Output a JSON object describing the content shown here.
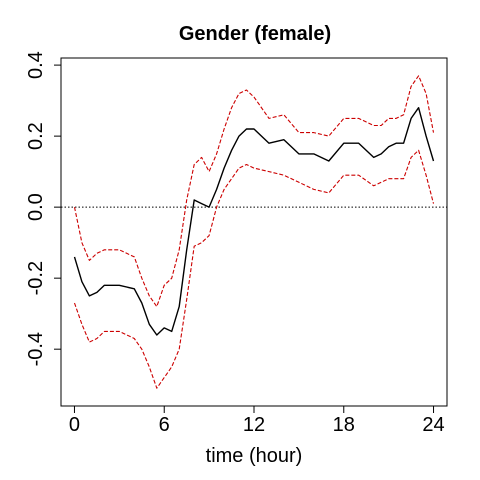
{
  "chart_data": {
    "type": "line",
    "title": "Gender (female)",
    "xlabel": "time (hour)",
    "ylabel": "",
    "xlim": [
      -0.9,
      24.9
    ],
    "ylim": [
      -0.56,
      0.42
    ],
    "xticks": [
      0,
      6,
      12,
      18,
      24
    ],
    "yticks": [
      -0.4,
      -0.2,
      0.0,
      0.2,
      0.4
    ],
    "xtick_labels": [
      "0",
      "6",
      "12",
      "18",
      "24"
    ],
    "ytick_labels": [
      "-0.4",
      "-0.2",
      "0.0",
      "0.2",
      "0.4"
    ],
    "reference_line": {
      "y": 0.0,
      "style": "dotted",
      "color": "#000000"
    },
    "grid": false,
    "series": [
      {
        "role": "estimate",
        "color": "#000000",
        "style": "solid",
        "x": [
          0,
          0.5,
          1,
          1.5,
          2,
          3,
          4,
          4.5,
          5,
          5.5,
          6,
          6.5,
          7,
          7.5,
          8,
          8.5,
          9,
          9.5,
          10,
          10.5,
          11,
          11.5,
          12,
          13,
          14,
          15,
          16,
          17,
          18,
          19,
          20,
          20.5,
          21,
          21.5,
          22,
          22.5,
          23,
          23.5,
          24
        ],
        "y": [
          -0.14,
          -0.21,
          -0.25,
          -0.24,
          -0.22,
          -0.22,
          -0.23,
          -0.27,
          -0.33,
          -0.36,
          -0.34,
          -0.35,
          -0.28,
          -0.12,
          0.02,
          0.01,
          0.0,
          0.05,
          0.11,
          0.16,
          0.2,
          0.22,
          0.22,
          0.18,
          0.19,
          0.15,
          0.15,
          0.13,
          0.18,
          0.18,
          0.14,
          0.15,
          0.17,
          0.18,
          0.18,
          0.25,
          0.28,
          0.2,
          0.13
        ]
      },
      {
        "role": "upper bound",
        "color": "#cc0000",
        "style": "dashed",
        "x": [
          0,
          0.5,
          1,
          1.5,
          2,
          3,
          4,
          4.5,
          5,
          5.5,
          6,
          6.5,
          7,
          7.5,
          8,
          8.5,
          9,
          9.5,
          10,
          10.5,
          11,
          11.5,
          12,
          13,
          14,
          15,
          16,
          17,
          18,
          19,
          20,
          20.5,
          21,
          21.5,
          22,
          22.5,
          23,
          23.5,
          24
        ],
        "y": [
          0.0,
          -0.1,
          -0.15,
          -0.13,
          -0.12,
          -0.12,
          -0.14,
          -0.2,
          -0.25,
          -0.28,
          -0.22,
          -0.2,
          -0.12,
          0.02,
          0.12,
          0.14,
          0.1,
          0.15,
          0.22,
          0.28,
          0.32,
          0.33,
          0.31,
          0.25,
          0.26,
          0.21,
          0.21,
          0.2,
          0.25,
          0.25,
          0.23,
          0.23,
          0.25,
          0.25,
          0.26,
          0.34,
          0.37,
          0.32,
          0.21
        ]
      },
      {
        "role": "lower bound",
        "color": "#cc0000",
        "style": "dashed",
        "x": [
          0,
          0.5,
          1,
          1.5,
          2,
          3,
          4,
          4.5,
          5,
          5.5,
          6,
          6.5,
          7,
          7.5,
          8,
          8.5,
          9,
          9.5,
          10,
          10.5,
          11,
          11.5,
          12,
          13,
          14,
          15,
          16,
          17,
          18,
          19,
          20,
          20.5,
          21,
          21.5,
          22,
          22.5,
          23,
          23.5,
          24
        ],
        "y": [
          -0.27,
          -0.33,
          -0.38,
          -0.37,
          -0.35,
          -0.35,
          -0.37,
          -0.4,
          -0.45,
          -0.51,
          -0.48,
          -0.45,
          -0.4,
          -0.26,
          -0.11,
          -0.1,
          -0.08,
          0.0,
          0.05,
          0.08,
          0.11,
          0.12,
          0.11,
          0.1,
          0.09,
          0.07,
          0.05,
          0.04,
          0.09,
          0.09,
          0.06,
          0.07,
          0.08,
          0.08,
          0.08,
          0.14,
          0.16,
          0.09,
          0.01
        ]
      }
    ]
  }
}
